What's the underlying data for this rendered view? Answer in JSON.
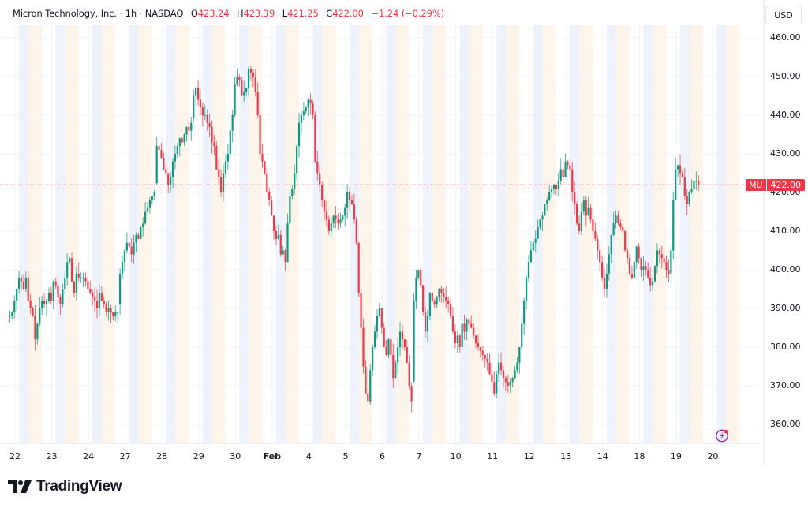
{
  "header": {
    "symbol_name": "Micron Technology, Inc.",
    "interval": "1h",
    "exchange": "NASDAQ",
    "separator": " · ",
    "open_label": "O",
    "open": "423.24",
    "high_label": "H",
    "high": "423.39",
    "low_label": "L",
    "low": "421.25",
    "close_label": "C",
    "close": "422.00",
    "change": "−1.24 (−0.29%)"
  },
  "currency_button": "USD",
  "last_price_tag": {
    "symbol": "MU",
    "value": "422.00",
    "color": "#f23645"
  },
  "branding": {
    "name": "TradingView"
  },
  "colors": {
    "up": "#089981",
    "down": "#f23645",
    "premarket_band": "#eef2fd",
    "postmarket_band": "#fef5ea",
    "grid": "#f0f3fa"
  },
  "chart_data": {
    "type": "candlestick",
    "title": "Micron Technology, Inc. · 1h · NASDAQ",
    "ylabel": "USD",
    "ylim": [
      355,
      463
    ],
    "yticks": [
      "460.00",
      "450.00",
      "440.00",
      "430.00",
      "420.00",
      "410.00",
      "400.00",
      "390.00",
      "380.00",
      "370.00",
      "360.00"
    ],
    "xticks": [
      "22",
      "23",
      "24",
      "27",
      "28",
      "29",
      "30",
      "Feb",
      "4",
      "5",
      "6",
      "7",
      "10",
      "11",
      "12",
      "13",
      "14",
      "18",
      "19",
      "20"
    ],
    "last_price": 422.0,
    "daily_closes_approx": [
      {
        "day": "22",
        "closes": [
          388,
          389,
          392,
          395,
          398,
          397,
          395,
          398,
          392,
          390,
          388,
          382,
          386,
          390,
          392,
          391
        ]
      },
      {
        "day": "23",
        "closes": [
          392,
          394,
          392,
          397,
          396,
          393,
          391,
          395,
          398,
          402,
          403,
          397,
          394,
          399,
          398,
          398
        ]
      },
      {
        "day": "24",
        "closes": [
          398,
          397,
          395,
          394,
          393,
          392,
          390,
          394,
          392,
          391,
          389,
          390,
          389,
          388,
          389,
          389
        ]
      },
      {
        "day": "27",
        "closes": [
          399,
          402,
          405,
          407,
          406,
          404,
          407,
          409,
          408,
          411,
          412,
          415,
          416,
          418,
          419,
          420
        ]
      },
      {
        "day": "28",
        "closes": [
          432,
          431,
          429,
          426,
          425,
          422,
          424,
          428,
          430,
          432,
          434,
          433,
          435,
          437,
          436,
          438
        ]
      },
      {
        "day": "29",
        "closes": [
          445,
          447,
          444,
          442,
          440,
          440,
          438,
          437,
          433,
          432,
          426,
          424,
          420,
          425,
          428,
          430
        ]
      },
      {
        "day": "30",
        "closes": [
          436,
          440,
          448,
          450,
          449,
          445,
          446,
          447,
          452,
          451,
          450,
          446,
          440,
          430,
          428,
          425
        ]
      },
      {
        "day": "Feb",
        "closes": [
          420,
          418,
          414,
          410,
          408,
          409,
          404,
          405,
          402,
          412,
          419,
          421,
          425,
          432,
          438,
          440
        ]
      },
      {
        "day": "4",
        "closes": [
          441,
          442,
          444,
          443,
          440,
          428,
          425,
          422,
          418,
          415,
          413,
          410,
          412,
          414,
          413,
          412
        ]
      },
      {
        "day": "5",
        "closes": [
          413,
          414,
          416,
          420,
          418,
          417,
          413,
          407,
          394,
          385,
          375,
          368,
          366,
          374,
          380,
          384
        ]
      },
      {
        "day": "6",
        "closes": [
          388,
          390,
          385,
          380,
          378,
          382,
          378,
          372,
          376,
          380,
          384,
          382,
          380,
          376,
          370,
          366
        ]
      },
      {
        "day": "7",
        "closes": [
          392,
          398,
          400,
          396,
          389,
          384,
          388,
          394,
          392,
          391,
          393,
          395,
          394,
          393,
          392,
          391
        ]
      },
      {
        "day": "10",
        "closes": [
          388,
          384,
          381,
          383,
          380,
          386,
          384,
          387,
          386,
          385,
          383,
          381,
          380,
          379,
          378,
          377
        ]
      },
      {
        "day": "11",
        "closes": [
          376,
          373,
          371,
          368,
          373,
          376,
          374,
          372,
          371,
          370,
          371,
          372,
          374,
          376,
          380,
          386
        ]
      },
      {
        "day": "12",
        "closes": [
          392,
          398,
          402,
          405,
          407,
          408,
          411,
          413,
          414,
          417,
          418,
          420,
          421,
          422,
          421,
          423
        ]
      },
      {
        "day": "13",
        "closes": [
          426,
          424,
          428,
          427,
          426,
          420,
          417,
          412,
          410,
          415,
          418,
          414,
          416,
          413,
          410,
          408
        ]
      },
      {
        "day": "14",
        "closes": [
          405,
          402,
          398,
          395,
          399,
          404,
          409,
          412,
          414,
          412,
          411,
          410,
          405,
          403,
          399,
          398
        ]
      },
      {
        "day": "18",
        "closes": [
          402,
          406,
          403,
          400,
          401,
          400,
          398,
          396,
          397,
          401,
          405,
          404,
          403,
          402,
          400,
          399
        ]
      },
      {
        "day": "19",
        "closes": [
          405,
          418,
          426,
          427,
          425,
          424,
          419,
          417,
          420,
          421,
          423,
          423,
          422
        ]
      }
    ]
  }
}
